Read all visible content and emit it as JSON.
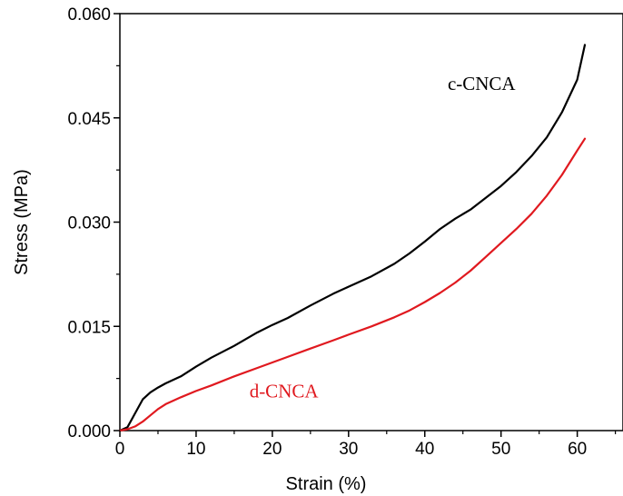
{
  "chart_data": {
    "type": "line",
    "xlabel": "Strain (%)",
    "ylabel": "Stress (MPa)",
    "xlim": [
      0,
      66
    ],
    "ylim": [
      0,
      0.06
    ],
    "x_ticks": [
      0,
      10,
      20,
      30,
      40,
      50,
      60
    ],
    "x_tick_labels": [
      "0",
      "10",
      "20",
      "30",
      "40",
      "50",
      "60"
    ],
    "y_ticks": [
      0,
      0.015,
      0.03,
      0.045,
      0.06
    ],
    "y_tick_labels": [
      "0.000",
      "0.015",
      "0.030",
      "0.045",
      "0.060"
    ],
    "grid": false,
    "series": [
      {
        "name": "c-CNCA",
        "color": "#000000",
        "x": [
          0,
          1,
          2,
          3,
          4,
          5,
          6,
          8,
          10,
          12,
          15,
          18,
          20,
          22,
          25,
          28,
          30,
          33,
          36,
          38,
          40,
          42,
          44,
          46,
          48,
          50,
          52,
          54,
          56,
          58,
          60,
          61
        ],
        "y": [
          0,
          0.0005,
          0.0025,
          0.0045,
          0.0055,
          0.0062,
          0.0068,
          0.0078,
          0.0092,
          0.0105,
          0.0122,
          0.0141,
          0.0152,
          0.0162,
          0.018,
          0.0197,
          0.0207,
          0.0222,
          0.024,
          0.0255,
          0.0272,
          0.029,
          0.0305,
          0.0318,
          0.0335,
          0.0352,
          0.0372,
          0.0395,
          0.0422,
          0.0458,
          0.0505,
          0.0555
        ]
      },
      {
        "name": "d-CNCA",
        "color": "#e0191f",
        "x": [
          0,
          1,
          2,
          3,
          4,
          5,
          6,
          8,
          10,
          12,
          15,
          18,
          20,
          22,
          25,
          28,
          30,
          33,
          36,
          38,
          40,
          42,
          44,
          46,
          48,
          50,
          52,
          54,
          56,
          58,
          60,
          61
        ],
        "y": [
          0,
          0.0002,
          0.0006,
          0.0013,
          0.0022,
          0.0031,
          0.0038,
          0.0048,
          0.0057,
          0.0065,
          0.0078,
          0.009,
          0.0098,
          0.0106,
          0.0118,
          0.013,
          0.0138,
          0.015,
          0.0163,
          0.0173,
          0.0185,
          0.0198,
          0.0213,
          0.023,
          0.025,
          0.027,
          0.029,
          0.0312,
          0.0338,
          0.0368,
          0.0403,
          0.042
        ]
      }
    ],
    "annotations": [
      {
        "text": "c-CNCA",
        "series": 0,
        "x": 43,
        "y": 0.049
      },
      {
        "text": "d-CNCA",
        "series": 1,
        "x": 17,
        "y": 0.0048
      }
    ]
  }
}
